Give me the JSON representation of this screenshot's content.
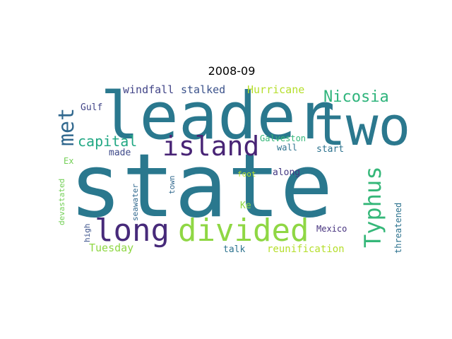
{
  "title": "2008-09",
  "words": [
    {
      "text": "state",
      "color": "#2a788e"
    },
    {
      "text": "leader",
      "color": "#2a788e"
    },
    {
      "text": "two",
      "color": "#2b788e"
    },
    {
      "text": "divided",
      "color": "#8fd744"
    },
    {
      "text": "long",
      "color": "#472a7a"
    },
    {
      "text": "island",
      "color": "#482475"
    },
    {
      "text": "Typhus",
      "color": "#35b779"
    },
    {
      "text": "met",
      "color": "#31688e"
    },
    {
      "text": "Nicosia",
      "color": "#2fb47c"
    },
    {
      "text": "capital",
      "color": "#22a884"
    },
    {
      "text": "windfall",
      "color": "#414487"
    },
    {
      "text": "stalked",
      "color": "#3b528b"
    },
    {
      "text": "Hurricane",
      "color": "#b5de2b"
    },
    {
      "text": "Gulf",
      "color": "#414487"
    },
    {
      "text": "made",
      "color": "#3e4989"
    },
    {
      "text": "Galveston",
      "color": "#35b779"
    },
    {
      "text": "wall",
      "color": "#2c728e"
    },
    {
      "text": "start",
      "color": "#2c728e"
    },
    {
      "text": "Ex",
      "color": "#73d056"
    },
    {
      "text": "foot",
      "color": "#b5de2b"
    },
    {
      "text": "along",
      "color": "#443983"
    },
    {
      "text": "town",
      "color": "#31688e"
    },
    {
      "text": "seawater",
      "color": "#31688e"
    },
    {
      "text": "devastated",
      "color": "#73d056"
    },
    {
      "text": "Ke",
      "color": "#8fd744"
    },
    {
      "text": "high",
      "color": "#3b528b"
    },
    {
      "text": "Mexico",
      "color": "#46327e"
    },
    {
      "text": "threatened",
      "color": "#2c728e"
    },
    {
      "text": "Tuesday",
      "color": "#8fd744"
    },
    {
      "text": "talk",
      "color": "#2c728e"
    },
    {
      "text": "reunification",
      "color": "#b5de2b"
    }
  ]
}
